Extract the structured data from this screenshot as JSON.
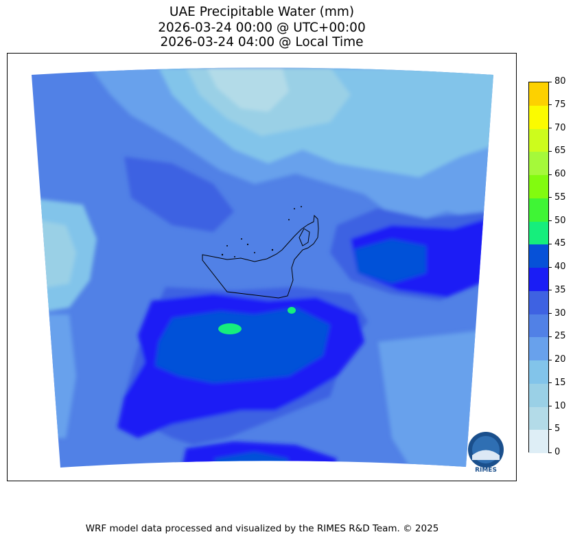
{
  "title": {
    "line1": "UAE Precipitable Water (mm)",
    "line2": "2026-03-24 00:00 @ UTC+00:00",
    "line3": "2026-03-24 04:00 @ Local Time"
  },
  "map": {
    "region": "UAE",
    "variable": "Precipitable Water",
    "unit": "mm",
    "logo_text": "RIMES",
    "contour_colors": {
      "0-5": "#deeef6",
      "5-10": "#b3dbe8",
      "10-15": "#9ad0e6",
      "15-20": "#82c4ea",
      "20-25": "#68a1ec",
      "25-30": "#5181e6",
      "30-35": "#3e62e2",
      "35-40": "#1a1df5",
      "40-45": "#0651d8",
      "45-50": "#16ee7c",
      "50-55": "#3ff535",
      "55-60": "#82fb0f",
      "60-65": "#a5f93a",
      "65-70": "#cdfc1c",
      "70-75": "#fbfb00",
      "75-80": "#fdd100"
    }
  },
  "colorbar": {
    "ticks": [
      "0",
      "5",
      "10",
      "15",
      "20",
      "25",
      "30",
      "35",
      "40",
      "45",
      "50",
      "55",
      "60",
      "65",
      "70",
      "75",
      "80"
    ],
    "colors": [
      "#deeef6",
      "#b3dbe8",
      "#9ad0e6",
      "#82c4ea",
      "#68a1ec",
      "#5181e6",
      "#3e62e2",
      "#1a1df5",
      "#0651d8",
      "#16ee7c",
      "#3ff535",
      "#82fb0f",
      "#a5f93a",
      "#cdfc1c",
      "#fbfb00",
      "#fdd100"
    ]
  },
  "footer": "WRF model data processed and visualized by the RIMES R&D Team. © 2025"
}
